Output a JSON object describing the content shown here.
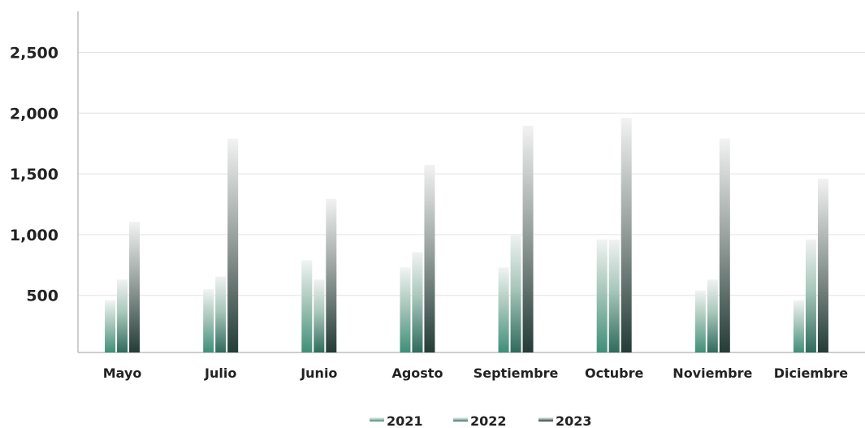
{
  "chart_data": {
    "type": "bar",
    "categories": [
      "Mayo",
      "Julio",
      "Junio",
      "Agosto",
      "Septiembre",
      "Octubre",
      "Noviembre",
      "Diciembre"
    ],
    "series": [
      {
        "name": "2021",
        "values": [
          460,
          550,
          790,
          730,
          730,
          960,
          540,
          460
        ],
        "color_top": "#f0f4f2",
        "color_bottom": "#3f8f78"
      },
      {
        "name": "2022",
        "values": [
          630,
          655,
          630,
          855,
          1000,
          960,
          630,
          960
        ],
        "color_top": "#f0f2f1",
        "color_bottom": "#2f6b5c"
      },
      {
        "name": "2023",
        "values": [
          1105,
          1790,
          1295,
          1575,
          1895,
          1960,
          1790,
          1460
        ],
        "color_top": "#f2f2f2",
        "color_bottom": "#243c36"
      }
    ],
    "yticks": [
      "500",
      "1,000",
      "1,500",
      "2,000",
      "2,500"
    ],
    "ytick_values": [
      500,
      1000,
      1500,
      2000,
      2500
    ],
    "ylim": [
      30,
      2850
    ],
    "grid": true,
    "legend_position": "bottom-center",
    "title": "",
    "xlabel": "",
    "ylabel": ""
  }
}
